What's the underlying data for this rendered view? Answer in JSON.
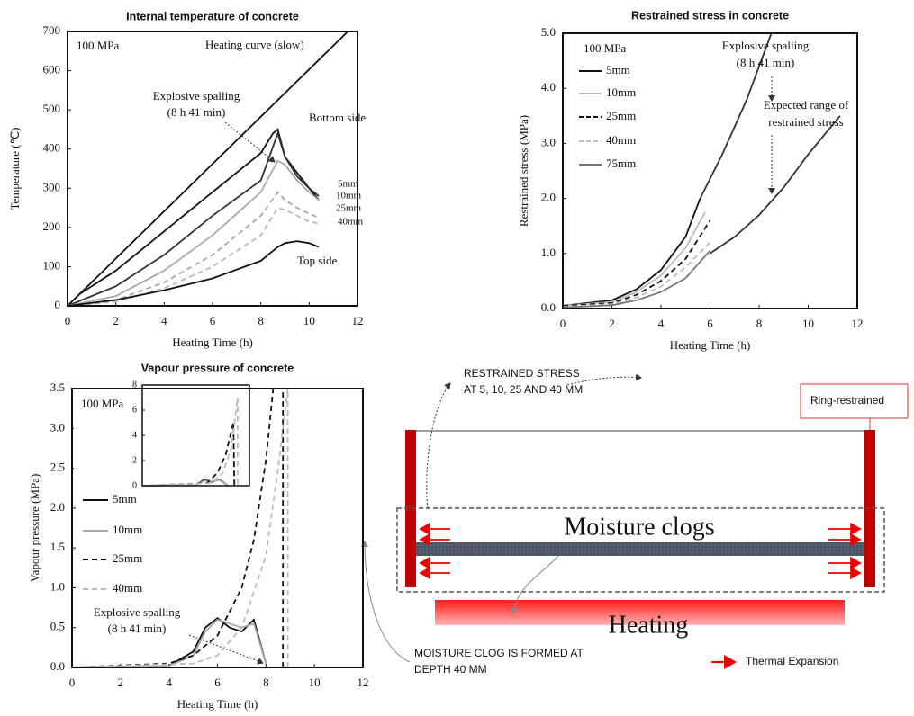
{
  "chart_data": [
    {
      "type": "line",
      "title": "Internal temperature of concrete",
      "xlabel": "Heating Time (h)",
      "ylabel": "Temperature (℃)",
      "xlim": [
        0,
        12
      ],
      "xticks": [
        0,
        2,
        4,
        6,
        8,
        10,
        12
      ],
      "ylim": [
        0,
        700
      ],
      "yticks": [
        0,
        100,
        200,
        300,
        400,
        500,
        600,
        700
      ],
      "annotation": "100 MPa",
      "spalling_note": [
        "Explosive spalling",
        "(8 h 41 min)"
      ],
      "series": [
        {
          "name": "Heating curve (slow)",
          "color": "#111111",
          "dash": false,
          "x": [
            0,
            11.6
          ],
          "values": [
            0,
            700
          ]
        },
        {
          "name": "Bottom side",
          "color": "#111111",
          "dash": false,
          "x": [
            0,
            0.5,
            2,
            4,
            6,
            8,
            8.5,
            8.7,
            9,
            9.5,
            10,
            10.4
          ],
          "values": [
            0,
            30,
            90,
            190,
            290,
            390,
            440,
            450,
            380,
            340,
            300,
            270
          ]
        },
        {
          "name": "5mm",
          "color": "#333333",
          "dash": false,
          "x": [
            0,
            2,
            4,
            6,
            8,
            8.7,
            9,
            9.5,
            10,
            10.4
          ],
          "values": [
            0,
            50,
            130,
            230,
            320,
            440,
            380,
            330,
            300,
            280
          ]
        },
        {
          "name": "10mm",
          "color": "#aaaaaa",
          "dash": false,
          "x": [
            0,
            2,
            4,
            6,
            8,
            8.7,
            9,
            9.5,
            10,
            10.4
          ],
          "values": [
            0,
            25,
            90,
            180,
            290,
            370,
            360,
            320,
            290,
            270
          ]
        },
        {
          "name": "25mm",
          "color": "#aaaaaa",
          "dash": true,
          "x": [
            0,
            2,
            4,
            6,
            8,
            8.7,
            9,
            9.5,
            10,
            10.4
          ],
          "values": [
            0,
            15,
            60,
            130,
            230,
            290,
            270,
            250,
            235,
            225
          ]
        },
        {
          "name": "40mm",
          "color": "#bbbbbb",
          "dash": true,
          "x": [
            0,
            2,
            4,
            6,
            8,
            8.7,
            9,
            9.5,
            10,
            10.4
          ],
          "values": [
            0,
            10,
            45,
            100,
            180,
            250,
            245,
            230,
            215,
            210
          ]
        },
        {
          "name": "Top side",
          "color": "#111111",
          "dash": false,
          "x": [
            0,
            2,
            4,
            6,
            8,
            8.7,
            9,
            9.5,
            10,
            10.4
          ],
          "values": [
            0,
            15,
            40,
            70,
            115,
            150,
            160,
            165,
            160,
            150
          ]
        }
      ]
    },
    {
      "type": "line",
      "title": "Restrained stress in concrete",
      "xlabel": "Heating Time (h)",
      "ylabel": "Restrained stress (MPa)",
      "xlim": [
        0,
        12
      ],
      "xticks": [
        0,
        2,
        4,
        6,
        8,
        10,
        12
      ],
      "ylim": [
        0,
        5
      ],
      "yticks": [
        {
          "value": 0,
          "label": "0.0"
        },
        {
          "value": 1,
          "label": "1.0"
        },
        {
          "value": 2,
          "label": "2.0"
        },
        {
          "value": 3,
          "label": "3.0"
        },
        {
          "value": 4,
          "label": "4.0"
        },
        {
          "value": 5,
          "label": "5.0"
        }
      ],
      "annotation": "100 MPa",
      "spalling_note": [
        "Explosive spalling",
        "(8 h 41 min)"
      ],
      "range_note": [
        "Expected range of",
        "restrained stress"
      ],
      "series": [
        {
          "name": "5mm",
          "color": "#111111",
          "dash": false,
          "x": [
            0,
            2,
            3,
            4,
            5,
            5.6
          ],
          "values": [
            0.05,
            0.15,
            0.35,
            0.7,
            1.3,
            2.0
          ]
        },
        {
          "name": "10mm",
          "color": "#bbbbbb",
          "dash": false,
          "x": [
            0,
            2,
            3,
            4,
            5,
            5.8
          ],
          "values": [
            0.05,
            0.12,
            0.3,
            0.6,
            1.1,
            1.75
          ]
        },
        {
          "name": "25mm",
          "color": "#111111",
          "dash": true,
          "x": [
            0,
            2,
            3,
            4,
            5,
            6
          ],
          "values": [
            0.05,
            0.1,
            0.25,
            0.5,
            0.9,
            1.6
          ]
        },
        {
          "name": "40mm",
          "color": "#bbbbbb",
          "dash": true,
          "x": [
            0,
            2,
            3,
            4,
            5,
            6
          ],
          "values": [
            0.03,
            0.08,
            0.2,
            0.4,
            0.75,
            1.2
          ]
        },
        {
          "name": "75mm",
          "color": "#777777",
          "dash": false,
          "x": [
            0,
            2,
            3,
            4,
            5,
            6
          ],
          "values": [
            0.02,
            0.06,
            0.15,
            0.3,
            0.55,
            1.05
          ]
        }
      ],
      "envelope": [
        {
          "color": "#333333",
          "dash": false,
          "x": [
            5.6,
            6.5,
            7.5,
            8.5
          ],
          "values": [
            2.0,
            2.8,
            3.8,
            5.0
          ]
        },
        {
          "color": "#333333",
          "dash": false,
          "x": [
            6,
            7,
            8,
            9,
            10,
            11.3
          ],
          "values": [
            1.0,
            1.3,
            1.7,
            2.2,
            2.8,
            3.5
          ]
        }
      ]
    },
    {
      "type": "line",
      "title": "Vapour pressure of concrete",
      "xlabel": "Heating Time (h)",
      "ylabel": "Vapour pressure (MPa)",
      "xlim": [
        0,
        12
      ],
      "xticks": [
        0,
        2,
        4,
        6,
        8,
        10,
        12
      ],
      "ylim": [
        0,
        3.5
      ],
      "yticks": [
        {
          "value": 0,
          "label": "0.0"
        },
        {
          "value": 0.5,
          "label": "0.5"
        },
        {
          "value": 1,
          "label": "1.0"
        },
        {
          "value": 1.5,
          "label": "1.5"
        },
        {
          "value": 2,
          "label": "2.0"
        },
        {
          "value": 2.5,
          "label": "2.5"
        },
        {
          "value": 3,
          "label": "3.0"
        },
        {
          "value": 3.5,
          "label": "3.5"
        }
      ],
      "spalling_note": [
        "Explosive spalling",
        "(8 h 41 min)"
      ],
      "series": [
        {
          "name": "5mm",
          "color": "#111111",
          "dash": false,
          "x": [
            0,
            4,
            5,
            5.5,
            6,
            6.5,
            7,
            7.5,
            8
          ],
          "values": [
            0,
            0.02,
            0.2,
            0.5,
            0.62,
            0.5,
            0.45,
            0.6,
            0.05
          ]
        },
        {
          "name": "10mm",
          "color": "#aaaaaa",
          "dash": false,
          "x": [
            0,
            4,
            5,
            5.5,
            6,
            6.5,
            7,
            7.5,
            8
          ],
          "values": [
            0,
            0.02,
            0.15,
            0.45,
            0.6,
            0.55,
            0.5,
            0.55,
            0.05
          ]
        },
        {
          "name": "25mm",
          "color": "#111111",
          "dash": true,
          "x": [
            0,
            4,
            5,
            6,
            7,
            7.5,
            8,
            8.3,
            8.7,
            8.7
          ],
          "values": [
            0,
            0.05,
            0.15,
            0.4,
            1.0,
            1.6,
            2.6,
            3.5,
            3.5,
            0
          ]
        },
        {
          "name": "40mm",
          "color": "#bbbbbb",
          "dash": true,
          "x": [
            0,
            5,
            6,
            7,
            8,
            8.5,
            8.9,
            8.9
          ],
          "values": [
            0,
            0.05,
            0.15,
            0.5,
            1.4,
            2.5,
            3.5,
            0
          ]
        }
      ],
      "inset": {
        "annotation": "100 MPa",
        "xlim": [
          0,
          10
        ],
        "ylim": [
          0,
          8
        ],
        "yticks": [
          0,
          2,
          4,
          6,
          8
        ],
        "series": [
          {
            "color": "#111111",
            "dash": false,
            "x": [
              0,
              5,
              5.8,
              6.5,
              7.2,
              8
            ],
            "values": [
              0,
              0.05,
              0.5,
              0.3,
              0.5,
              0
            ]
          },
          {
            "color": "#aaaaaa",
            "dash": false,
            "x": [
              0,
              5,
              5.8,
              6.5,
              7.2,
              8
            ],
            "values": [
              0,
              0.05,
              0.4,
              0.35,
              0.45,
              0
            ]
          },
          {
            "color": "#111111",
            "dash": true,
            "x": [
              0,
              6,
              7,
              7.8,
              8.5,
              8.6
            ],
            "values": [
              0,
              0.2,
              1.0,
              2.5,
              5.0,
              0
            ]
          },
          {
            "color": "#bbbbbb",
            "dash": true,
            "x": [
              0,
              6.5,
              7.5,
              8.3,
              8.9,
              8.9
            ],
            "values": [
              0,
              0.2,
              1.0,
              3.0,
              7.0,
              0
            ]
          }
        ]
      }
    }
  ],
  "diagram": {
    "restrained_note": [
      "RESTRAINED STRESS",
      "AT 5, 10, 25 AND 40 MM"
    ],
    "ring_label": "Ring-restrained",
    "clog_label": "Moisture clogs",
    "heating_label": "Heating",
    "clog_note": [
      "MOISTURE CLOG IS FORMED AT",
      "DEPTH 40 MM"
    ],
    "legend": "Thermal Expansion"
  }
}
